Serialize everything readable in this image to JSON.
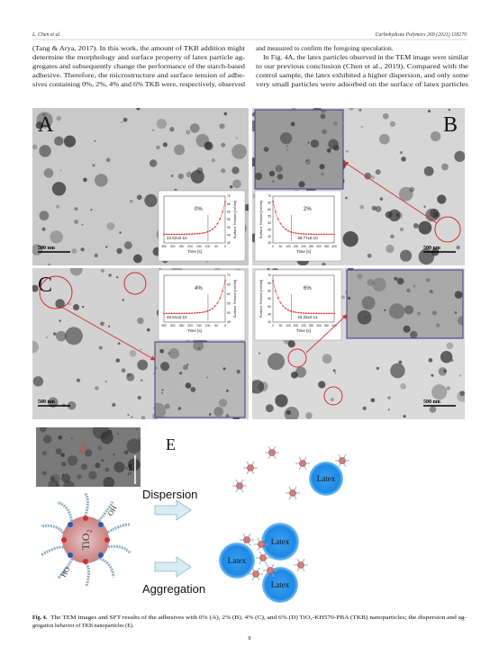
{
  "header": {
    "authors": "L. Chen et al.",
    "journal": "Carbohydrate Polymers 269 (2021) 118270"
  },
  "body": {
    "left_lines": [
      "(Tang & Arya, 2017). In this work, the amount of TKB addition might",
      "determine the morphology and surface property of latex particle ag-",
      "gregates and subsequently change the performance of the starch-based",
      "adhesive. Therefore, the microstructure and surface tension of adhe-",
      "sives containing 0%, 2%, 4% and 6% TKB were, respectively, observed"
    ],
    "right_lines": [
      "and measured to confirm the foregoing speculation.",
      "In Fig. 4A, the latex particles observed in the TEM image were similar",
      "to our previous conclusion (Chen et al., 2019). Compared with the",
      "control sample, the latex exhibited a higher dispersion, and only some",
      "very small particles were adsorbed on the surface of latex particles"
    ]
  },
  "figure": {
    "panels": [
      {
        "label": "A",
        "scale_bar": "500 nm",
        "inset": {
          "series_label": "0%",
          "result": "42.62±0.10",
          "x_label": "Time [s]",
          "y_label": "Surface Tension [mN/m]",
          "x_ticks": [
            350,
            300,
            250,
            200,
            150,
            100,
            50,
            0
          ],
          "y_ticks": [
            40,
            45,
            50,
            55,
            60,
            65,
            70
          ]
        }
      },
      {
        "label": "B",
        "scale_bar": "500 nm",
        "inset": {
          "series_label": "2%",
          "result": "38.77±0.10",
          "x_label": "Time [s]",
          "y_label": "Surface Tension [mN/m]",
          "x_ticks": [
            0,
            50,
            100,
            150,
            200,
            250,
            300,
            350,
            400
          ],
          "y_ticks": [
            35,
            40,
            45,
            50,
            55,
            60,
            65,
            70
          ]
        }
      },
      {
        "label": "C",
        "scale_bar": "500 nm",
        "inset": {
          "series_label": "4%",
          "result": "46.51±0.10",
          "x_label": "Time [s]",
          "y_label": "Surface Tension [mN/m]",
          "x_ticks": [
            350,
            300,
            250,
            200,
            150,
            100,
            50,
            0
          ],
          "y_ticks": [
            45,
            50,
            55,
            60,
            65,
            70
          ]
        }
      },
      {
        "label": "D",
        "scale_bar": "500 nm",
        "inset": {
          "series_label": "6%",
          "result": "40.33±0.11",
          "x_label": "Time [s]",
          "y_label": "Surface Tension [mN/m]",
          "x_ticks": [
            0,
            50,
            100,
            150,
            200,
            250,
            300,
            350,
            400
          ],
          "y_ticks": [
            40,
            45,
            50,
            55,
            60,
            65,
            70
          ]
        }
      }
    ],
    "scheme": {
      "label": "E",
      "dispersion": "Dispersion",
      "aggregation": "Aggregation",
      "latex": "Latex",
      "particle": "TiO₂",
      "hydroxyl": [
        "OH",
        "HO"
      ],
      "tem_label": "TiO₂",
      "tem_scale": "5 nm"
    }
  },
  "caption": {
    "label": "Fig. 4.",
    "lines": [
      "The TEM images and SFT results of the adhesives with 0% (A), 2% (B), 4% (C), and 6% (D) TiO₂-KH570-PBA (TKB) nanoparticles; the dispersion and ag-",
      "gregation behavior of TKB nanoparticles (E)."
    ]
  },
  "page_number": "8"
}
